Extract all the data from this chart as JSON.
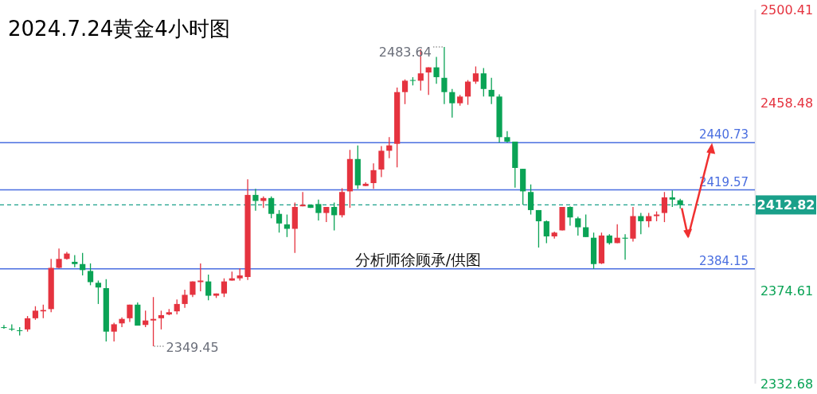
{
  "chart_data": {
    "type": "candlestick",
    "title": "2024.7.24黄金4小时图",
    "categories": [
      null,
      null,
      null,
      null,
      null,
      null,
      null,
      null,
      null,
      null,
      null,
      null,
      null,
      null,
      null,
      null,
      null,
      null,
      null,
      null,
      null,
      null,
      null,
      null,
      null,
      null,
      null,
      null,
      null,
      null,
      null,
      null,
      null,
      null,
      null,
      null,
      null,
      null,
      null,
      null,
      null,
      null,
      null,
      null,
      null,
      null,
      null,
      null,
      null,
      null,
      null,
      null,
      null,
      null,
      null,
      null,
      null,
      null,
      null,
      null,
      null,
      null,
      null,
      null,
      null,
      null,
      null,
      null,
      null,
      null,
      null,
      null,
      null,
      null,
      null,
      null,
      null,
      null,
      null,
      null,
      null,
      null,
      null,
      null,
      null,
      null,
      null,
      null,
      null,
      null,
      null,
      null,
      null,
      null,
      null,
      null
    ],
    "ohlc": [
      [
        2358.0,
        2359.0,
        2357.3,
        2358.0
      ],
      [
        2357.3,
        2359.3,
        2356.3,
        2357.0
      ],
      [
        2356.6,
        2358.0,
        2354.3,
        2356.3
      ],
      [
        2357.0,
        2363.0,
        2356.0,
        2362.0
      ],
      [
        2362.0,
        2367.4,
        2361.3,
        2365.4
      ],
      [
        2365.1,
        2368.1,
        2362.0,
        2365.7
      ],
      [
        2366.1,
        2388.6,
        2364.7,
        2384.6
      ],
      [
        2384.6,
        2393.3,
        2384.3,
        2388.6
      ],
      [
        2388.6,
        2391.7,
        2388.3,
        2391.0
      ],
      [
        2387.3,
        2390.3,
        2384.9,
        2386.3
      ],
      [
        2386.3,
        2391.3,
        2381.2,
        2383.6
      ],
      [
        2383.2,
        2386.6,
        2376.8,
        2378.2
      ],
      [
        2377.9,
        2378.9,
        2368.4,
        2375.8
      ],
      [
        2375.5,
        2379.5,
        2351.6,
        2356.0
      ],
      [
        2356.0,
        2360.0,
        2351.6,
        2359.3
      ],
      [
        2359.7,
        2362.4,
        2358.0,
        2361.7
      ],
      [
        2362.0,
        2368.1,
        2360.3,
        2368.1
      ],
      [
        2368.1,
        2369.1,
        2358.7,
        2358.7
      ],
      [
        2359.0,
        2365.4,
        2358.0,
        2361.0
      ],
      [
        2361.0,
        2371.5,
        2349.45,
        2361.7
      ],
      [
        2362.0,
        2365.4,
        2357.0,
        2363.4
      ],
      [
        2363.7,
        2366.1,
        2363.4,
        2364.7
      ],
      [
        2365.1,
        2370.4,
        2363.7,
        2368.4
      ],
      [
        2368.4,
        2374.8,
        2366.7,
        2372.5
      ],
      [
        2372.5,
        2378.5,
        2371.5,
        2378.5
      ],
      [
        2378.2,
        2386.6,
        2374.1,
        2378.9
      ],
      [
        2378.5,
        2381.6,
        2370.1,
        2372.1
      ],
      [
        2372.1,
        2373.1,
        2371.1,
        2373.1
      ],
      [
        2373.1,
        2379.9,
        2371.5,
        2378.5
      ],
      [
        2378.9,
        2382.9,
        2378.9,
        2379.9
      ],
      [
        2379.9,
        2384.3,
        2378.9,
        2381.2
      ],
      [
        2380.5,
        2424.3,
        2379.2,
        2417.3
      ],
      [
        2417.3,
        2420.0,
        2410.2,
        2414.6
      ],
      [
        2414.6,
        2416.6,
        2411.5,
        2415.9
      ],
      [
        2415.9,
        2416.6,
        2406.8,
        2408.8
      ],
      [
        2408.8,
        2410.5,
        2400.4,
        2404.5
      ],
      [
        2404.1,
        2408.5,
        2398.4,
        2402.1
      ],
      [
        2402.1,
        2413.9,
        2391.3,
        2411.9
      ],
      [
        2412.2,
        2418.6,
        2412.2,
        2412.9
      ],
      [
        2412.9,
        2412.9,
        2411.5,
        2411.5
      ],
      [
        2413.2,
        2415.2,
        2405.8,
        2409.2
      ],
      [
        2409.2,
        2411.9,
        2405.1,
        2411.9
      ],
      [
        2411.9,
        2413.9,
        2401.4,
        2408.2
      ],
      [
        2408.2,
        2420.3,
        2407.2,
        2418.6
      ],
      [
        2418.9,
        2437.5,
        2411.5,
        2433.4
      ],
      [
        2433.4,
        2439.5,
        2420.0,
        2421.6
      ],
      [
        2421.3,
        2423.0,
        2421.3,
        2422.3
      ],
      [
        2422.6,
        2431.4,
        2420.0,
        2428.4
      ],
      [
        2428.7,
        2439.2,
        2425.3,
        2437.1
      ],
      [
        2437.1,
        2443.2,
        2433.8,
        2439.5
      ],
      [
        2440.2,
        2465.4,
        2429.7,
        2463.4
      ],
      [
        2463.4,
        2469.1,
        2458.0,
        2468.5
      ],
      [
        2468.8,
        2470.1,
        2466.4,
        2468.5
      ],
      [
        2468.5,
        2482.6,
        2464.1,
        2471.8
      ],
      [
        2472.2,
        2474.5,
        2462.1,
        2474.5
      ],
      [
        2474.5,
        2479.2,
        2467.1,
        2470.1
      ],
      [
        2469.8,
        2483.64,
        2458.0,
        2463.4
      ],
      [
        2463.4,
        2464.8,
        2452.0,
        2458.4
      ],
      [
        2458.4,
        2462.1,
        2457.3,
        2461.4
      ],
      [
        2461.4,
        2468.8,
        2457.7,
        2468.1
      ],
      [
        2468.1,
        2474.9,
        2467.1,
        2471.8
      ],
      [
        2471.8,
        2474.2,
        2461.4,
        2464.8
      ],
      [
        2464.4,
        2469.8,
        2458.0,
        2461.4
      ],
      [
        2461.4,
        2462.4,
        2440.8,
        2443.2
      ],
      [
        2443.2,
        2445.9,
        2440.8,
        2441.2
      ],
      [
        2441.2,
        2441.2,
        2420.6,
        2429.4
      ],
      [
        2429.0,
        2429.0,
        2412.9,
        2418.9
      ],
      [
        2418.6,
        2422.0,
        2408.5,
        2410.5
      ],
      [
        2410.5,
        2410.5,
        2393.7,
        2405.5
      ],
      [
        2405.5,
        2405.8,
        2395.7,
        2398.7
      ],
      [
        2398.7,
        2400.8,
        2397.7,
        2400.4
      ],
      [
        2401.4,
        2411.9,
        2401.4,
        2411.9
      ],
      [
        2411.9,
        2412.2,
        2403.5,
        2407.2
      ],
      [
        2406.8,
        2407.5,
        2399.1,
        2402.8
      ],
      [
        2402.8,
        2408.5,
        2398.4,
        2398.4
      ],
      [
        2398.1,
        2400.4,
        2384.2,
        2386.3
      ],
      [
        2386.6,
        2400.4,
        2386.3,
        2399.1
      ],
      [
        2399.1,
        2399.7,
        2395.0,
        2395.7
      ],
      [
        2395.7,
        2404.1,
        2395.7,
        2398.1
      ],
      [
        2398.1,
        2399.7,
        2388.3,
        2397.7
      ],
      [
        2397.7,
        2411.9,
        2396.4,
        2407.8
      ],
      [
        2407.8,
        2409.2,
        2399.7,
        2405.5
      ],
      [
        2405.5,
        2409.2,
        2402.8,
        2407.8
      ],
      [
        2407.8,
        2409.9,
        2405.5,
        2408.5
      ],
      [
        2409.2,
        2418.6,
        2405.1,
        2416.2
      ],
      [
        2416.2,
        2419.3,
        2411.9,
        2415.2
      ],
      [
        2414.9,
        2415.6,
        2411.2,
        2412.82
      ],
      null,
      null,
      null,
      null,
      null,
      null,
      null,
      null,
      null
    ],
    "colors": [
      "#0aa355",
      "#0aa355",
      "#0aa355",
      "#e5333f",
      "#e5333f",
      "#e5333f",
      "#e5333f",
      "#e5333f",
      "#e5333f",
      "#0aa355",
      "#0aa355",
      "#0aa355",
      "#0aa355",
      "#0aa355",
      "#e5333f",
      "#e5333f",
      "#e5333f",
      "#0aa355",
      "#e5333f",
      "#e5333f",
      "#e5333f",
      "#e5333f",
      "#e5333f",
      "#e5333f",
      "#e5333f",
      "#e5333f",
      "#0aa355",
      "#e5333f",
      "#e5333f",
      "#e5333f",
      "#e5333f",
      "#e5333f",
      "#0aa355",
      "#e5333f",
      "#0aa355",
      "#0aa355",
      "#0aa355",
      "#e5333f",
      "#e5333f",
      "#0aa355",
      "#0aa355",
      "#e5333f",
      "#0aa355",
      "#e5333f",
      "#e5333f",
      "#0aa355",
      "#e5333f",
      "#e5333f",
      "#e5333f",
      "#e5333f",
      "#e5333f",
      "#e5333f",
      "#0aa355",
      "#e5333f",
      "#e5333f",
      "#0aa355",
      "#0aa355",
      "#0aa355",
      "#e5333f",
      "#e5333f",
      "#e5333f",
      "#0aa355",
      "#0aa355",
      "#0aa355",
      "#0aa355",
      "#0aa355",
      "#0aa355",
      "#0aa355",
      "#0aa355",
      "#0aa355",
      "#e5333f",
      "#e5333f",
      "#0aa355",
      "#0aa355",
      "#0aa355",
      "#0aa355",
      "#e5333f",
      "#0aa355",
      "#e5333f",
      "#0aa355",
      "#e5333f",
      "#0aa355",
      "#e5333f",
      "#e5333f",
      "#e5333f",
      "#0aa355",
      "#0aa355",
      null,
      null,
      null,
      null,
      null,
      null,
      null,
      null,
      null
    ],
    "ylim": [
      2332.68,
      2500.41
    ],
    "yticks": [
      2332.68,
      2374.61,
      2458.48,
      2500.41
    ],
    "ref_lines": [
      {
        "axis": "y",
        "value": 2440.73,
        "label": "2440.73",
        "color": "#4a6ee0",
        "line_style": "solid"
      },
      {
        "axis": "y",
        "value": 2419.57,
        "label": "2419.57",
        "color": "#4a6ee0",
        "line_style": "solid"
      },
      {
        "axis": "y",
        "value": 2384.15,
        "label": "2384.15",
        "color": "#4a6ee0",
        "line_style": "solid"
      },
      {
        "axis": "y",
        "value": 2412.82,
        "label": "2412.82",
        "color": "#1aa08a",
        "line_style": "dashed"
      }
    ],
    "annotations": [
      "2483.64",
      "2349.45",
      "分析师徐顾承/供图"
    ]
  }
}
